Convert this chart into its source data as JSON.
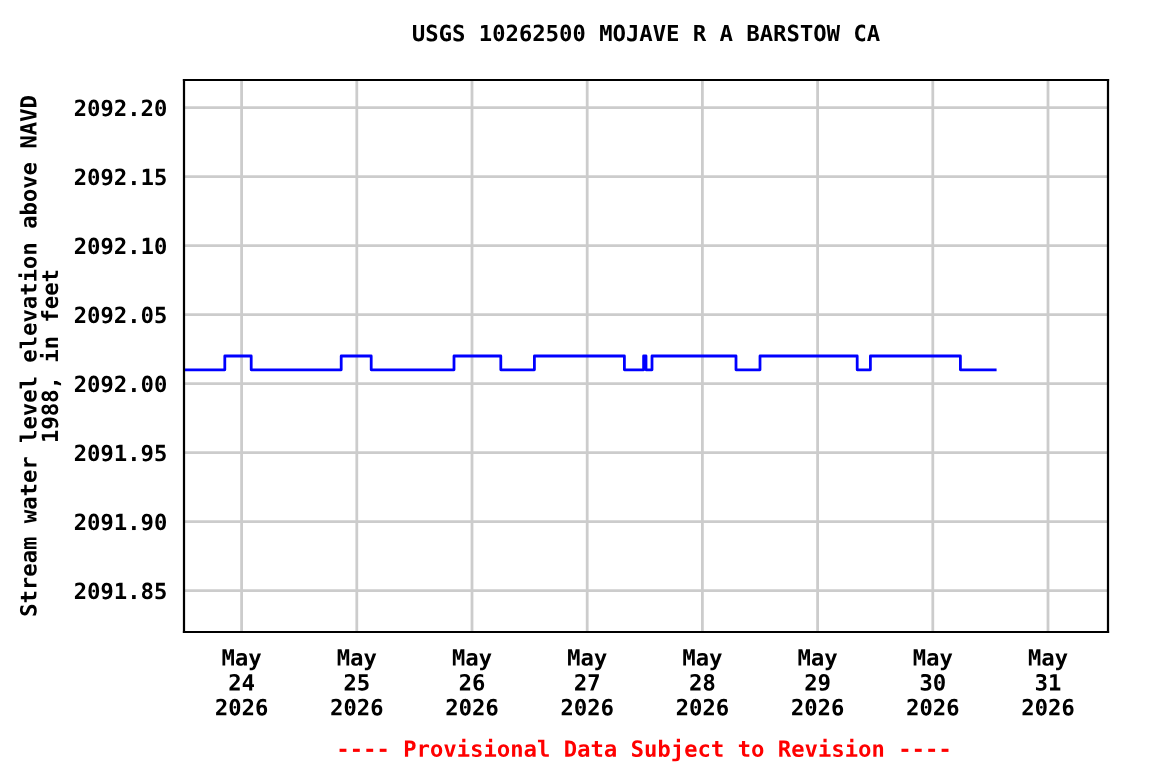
{
  "chart_data": {
    "type": "step",
    "title": "USGS 10262500 MOJAVE R A BARSTOW CA",
    "ylabel": "Stream water level elevation above NAVD\n1988, in feet",
    "x": [
      "2026-05-23T12:00",
      "2026-05-23T20:30",
      "2026-05-24T02:00",
      "2026-05-24T20:45",
      "2026-05-25T03:00",
      "2026-05-25T20:15",
      "2026-05-26T06:00",
      "2026-05-26T13:00",
      "2026-05-27T07:45",
      "2026-05-27T11:45",
      "2026-05-27T12:15",
      "2026-05-27T13:30",
      "2026-05-28T07:00",
      "2026-05-28T12:00",
      "2026-05-29T08:15",
      "2026-05-29T11:00",
      "2026-05-30T05:45",
      "2026-05-30T13:00"
    ],
    "series": [
      {
        "color": "#0000ff",
        "values": [
          2092.01,
          2092.02,
          2092.01,
          2092.02,
          2092.01,
          2092.02,
          2092.01,
          2092.02,
          2092.01,
          2092.02,
          2092.01,
          2092.02,
          2092.01,
          2092.02,
          2092.01,
          2092.02,
          2092.01,
          2092.01
        ]
      }
    ],
    "xlim": [
      "2026-05-23T12:00",
      "2026-05-31T12:30"
    ],
    "xticks": [
      {
        "value": "2026-05-24",
        "label": "May\n24\n2026"
      },
      {
        "value": "2026-05-25",
        "label": "May\n25\n2026"
      },
      {
        "value": "2026-05-26",
        "label": "May\n26\n2026"
      },
      {
        "value": "2026-05-27",
        "label": "May\n27\n2026"
      },
      {
        "value": "2026-05-28",
        "label": "May\n28\n2026"
      },
      {
        "value": "2026-05-29",
        "label": "May\n29\n2026"
      },
      {
        "value": "2026-05-30",
        "label": "May\n30\n2026"
      },
      {
        "value": "2026-05-31",
        "label": "May\n31\n2026"
      }
    ],
    "ylim": [
      2091.82,
      2092.22
    ],
    "yticks": [
      {
        "value": 2091.85,
        "label": "2091.85"
      },
      {
        "value": 2091.9,
        "label": "2091.90"
      },
      {
        "value": 2091.95,
        "label": "2091.95"
      },
      {
        "value": 2092.0,
        "label": "2092.00"
      },
      {
        "value": 2092.05,
        "label": "2092.05"
      },
      {
        "value": 2092.1,
        "label": "2092.10"
      },
      {
        "value": 2092.15,
        "label": "2092.15"
      },
      {
        "value": 2092.2,
        "label": "2092.20"
      }
    ],
    "grid": true,
    "annotations": [
      "---- Provisional Data Subject to Revision ----"
    ]
  }
}
